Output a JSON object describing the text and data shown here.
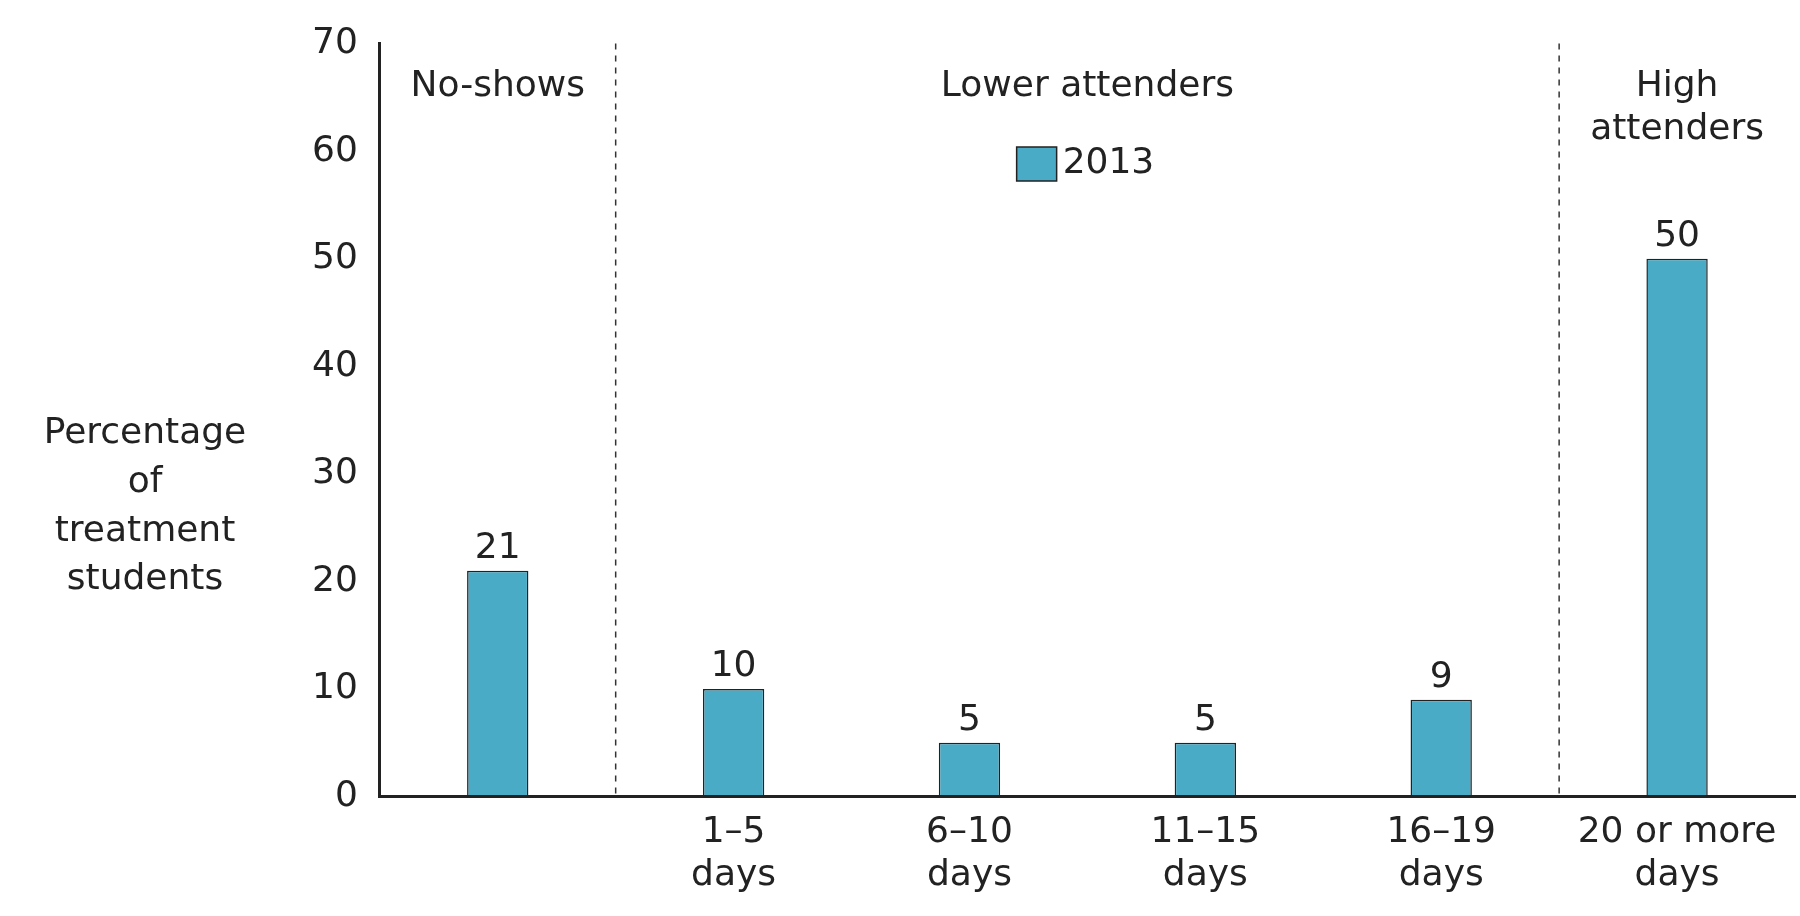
{
  "chart_data": {
    "type": "bar",
    "ylabel": "Percentage of treatment students",
    "categories": [
      null,
      "1–5 days",
      "6–10 days",
      "11–15 days",
      "16–19 days",
      "20 or more days"
    ],
    "series": [
      {
        "name": "2013",
        "color": "#4aabc6",
        "values": [
          21,
          10,
          5,
          5,
          9,
          50
        ]
      }
    ],
    "ylim": [
      0,
      70
    ],
    "yticks": [
      0,
      10,
      20,
      30,
      40,
      50,
      60,
      70
    ],
    "grid": false,
    "legend": "top",
    "data_labels": true,
    "annotations": [
      "No-shows",
      "Lower attenders",
      "High attenders"
    ]
  }
}
